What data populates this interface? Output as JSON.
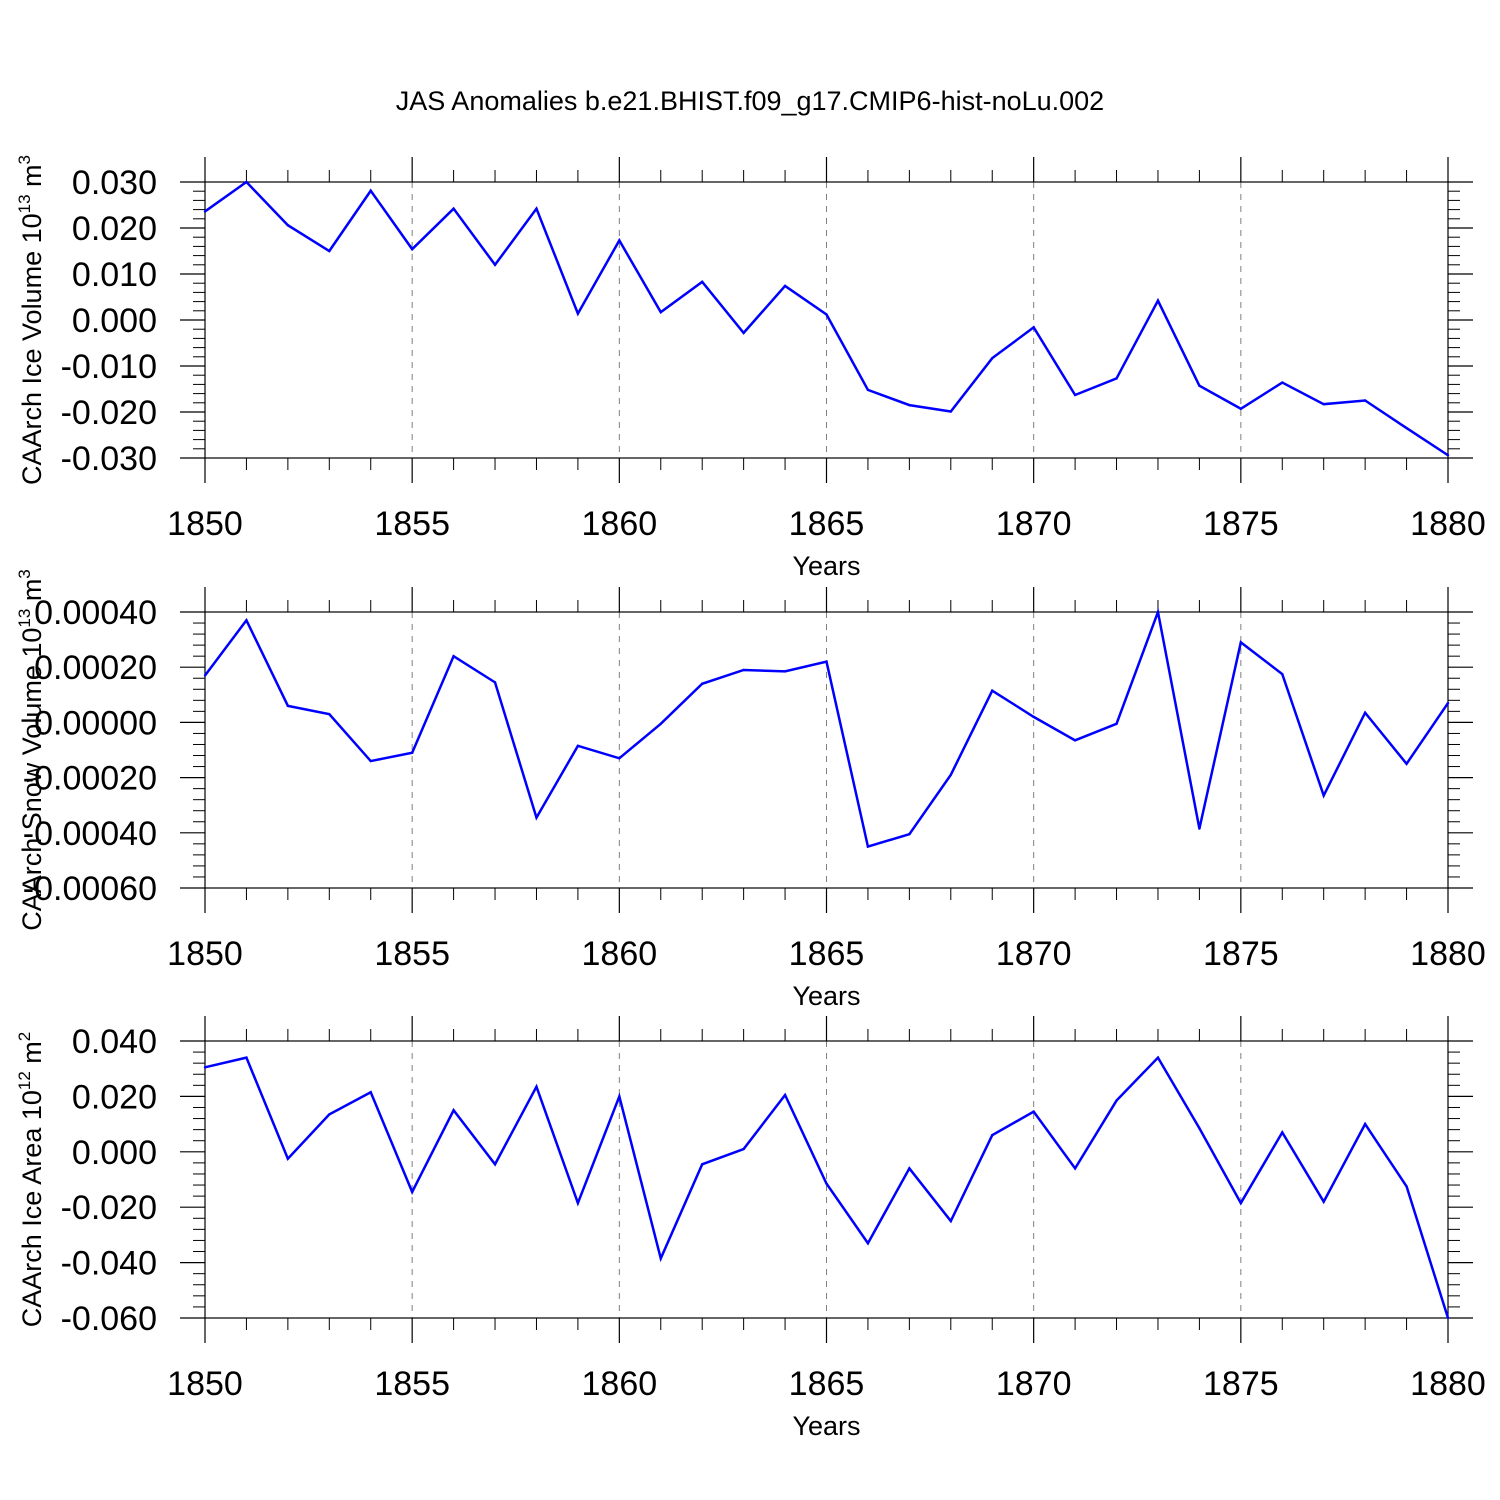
{
  "page_title": "JAS Anomalies b.e21.BHIST.f09_g17.CMIP6-hist-noLu.002",
  "colors": {
    "line": "#0000ff",
    "axis": "#000000",
    "grid": "#808080"
  },
  "chart_data": [
    {
      "type": "line",
      "title": "",
      "xlabel": "Years",
      "ylabel_main": "CAArch Ice Volume 10",
      "ylabel_exp": "13",
      "ylabel_unit": " m",
      "ylabel_unit_exp": "3",
      "ylim": [
        -0.03,
        0.03
      ],
      "xlim": [
        1850,
        1880
      ],
      "x_ticks": [
        1850,
        1855,
        1860,
        1865,
        1870,
        1875,
        1880
      ],
      "y_ticks": [
        0.03,
        0.02,
        0.01,
        0.0,
        -0.01,
        -0.02,
        -0.03
      ],
      "y_tick_labels": [
        "0.030",
        "0.020",
        "0.010",
        "0.000",
        "-0.010",
        "-0.020",
        "-0.030"
      ],
      "grid": "vertical dashed at major x ticks",
      "series": [
        {
          "color": "#0000ff",
          "x": [
            1850,
            1851,
            1852,
            1853,
            1854,
            1855,
            1856,
            1857,
            1858,
            1859,
            1860,
            1861,
            1862,
            1863,
            1864,
            1865,
            1866,
            1867,
            1868,
            1869,
            1870,
            1871,
            1872,
            1873,
            1874,
            1875,
            1876,
            1877,
            1878,
            1879,
            1880
          ],
          "values": [
            0.0236,
            0.03,
            0.0206,
            0.015,
            0.0281,
            0.0154,
            0.0242,
            0.012,
            0.0242,
            0.0014,
            0.0173,
            0.0017,
            0.0083,
            -0.0028,
            0.0074,
            0.0012,
            -0.0152,
            -0.0185,
            -0.0199,
            -0.0083,
            -0.0016,
            -0.0163,
            -0.0127,
            0.0042,
            -0.0143,
            -0.0193,
            -0.0136,
            -0.0183,
            -0.0175,
            -0.0235,
            -0.0294
          ]
        }
      ]
    },
    {
      "type": "line",
      "title": "",
      "xlabel": "Years",
      "ylabel_main": "CAArch Snow Volume 10",
      "ylabel_exp": "13",
      "ylabel_unit": " m",
      "ylabel_unit_exp": "3",
      "ylim": [
        -0.0006,
        0.0004
      ],
      "xlim": [
        1850,
        1880
      ],
      "x_ticks": [
        1850,
        1855,
        1860,
        1865,
        1870,
        1875,
        1880
      ],
      "y_ticks": [
        0.0004,
        0.0002,
        0.0,
        -0.0002,
        -0.0004,
        -0.0006
      ],
      "y_tick_labels": [
        "0.00040",
        "0.00020",
        "0.00000",
        "-0.00020",
        "-0.00040",
        "-0.00060"
      ],
      "grid": "vertical dashed at major x ticks",
      "series": [
        {
          "color": "#0000ff",
          "x": [
            1850,
            1851,
            1852,
            1853,
            1854,
            1855,
            1856,
            1857,
            1858,
            1859,
            1860,
            1861,
            1862,
            1863,
            1864,
            1865,
            1866,
            1867,
            1868,
            1869,
            1870,
            1871,
            1872,
            1873,
            1874,
            1875,
            1876,
            1877,
            1878,
            1879,
            1880
          ],
          "values": [
            0.00017,
            0.00037,
            6e-05,
            3e-05,
            -0.00014,
            -0.00011,
            0.00024,
            0.000145,
            -0.000345,
            -8.5e-05,
            -0.00013,
            -5e-06,
            0.00014,
            0.00019,
            0.000185,
            0.00022,
            -0.00045,
            -0.000405,
            -0.00019,
            0.000115,
            2e-05,
            -6.5e-05,
            -5e-06,
            0.0004,
            -0.000385,
            0.00029,
            0.000175,
            -0.000265,
            3.5e-05,
            -0.00015,
            7e-05
          ]
        }
      ]
    },
    {
      "type": "line",
      "title": "",
      "xlabel": "Years",
      "ylabel_main": "CAArch Ice Area 10",
      "ylabel_exp": "12",
      "ylabel_unit": " m",
      "ylabel_unit_exp": "2",
      "ylim": [
        -0.06,
        0.04
      ],
      "xlim": [
        1850,
        1880
      ],
      "x_ticks": [
        1850,
        1855,
        1860,
        1865,
        1870,
        1875,
        1880
      ],
      "y_ticks": [
        0.04,
        0.02,
        0.0,
        -0.02,
        -0.04,
        -0.06
      ],
      "y_tick_labels": [
        "0.040",
        "0.020",
        "0.000",
        "-0.020",
        "-0.040",
        "-0.060"
      ],
      "grid": "vertical dashed at major x ticks",
      "series": [
        {
          "color": "#0000ff",
          "x": [
            1850,
            1851,
            1852,
            1853,
            1854,
            1855,
            1856,
            1857,
            1858,
            1859,
            1860,
            1861,
            1862,
            1863,
            1864,
            1865,
            1866,
            1867,
            1868,
            1869,
            1870,
            1871,
            1872,
            1873,
            1874,
            1875,
            1876,
            1877,
            1878,
            1879,
            1880
          ],
          "values": [
            0.0305,
            0.034,
            -0.0025,
            0.0135,
            0.0215,
            -0.0145,
            0.015,
            -0.0045,
            0.0235,
            -0.0185,
            0.02,
            -0.0385,
            -0.0045,
            0.001,
            0.0205,
            -0.0115,
            -0.033,
            -0.006,
            -0.025,
            0.006,
            0.0145,
            -0.006,
            0.0185,
            0.034,
            0.0085,
            -0.0185,
            0.007,
            -0.018,
            0.01,
            -0.0125,
            -0.06
          ]
        }
      ]
    }
  ]
}
